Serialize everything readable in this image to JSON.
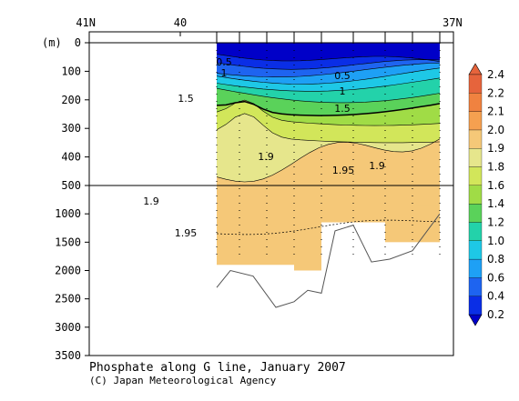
{
  "chart_data": {
    "type": "contour-section",
    "title": "Phosphate along G line, January 2007",
    "credit": "(C) Japan Meteorological Agency",
    "y_unit": "(m)",
    "x_ticks_top": [
      "41N",
      "40",
      "37N"
    ],
    "y_ticks": [
      "0",
      "100",
      "200",
      "300",
      "400",
      "500",
      "1000",
      "1500",
      "2000",
      "2500",
      "3000",
      "3500"
    ],
    "y_ticks_upper": [
      0,
      100,
      200,
      300,
      400,
      500
    ],
    "y_ticks_lower": [
      500,
      1000,
      1500,
      2000,
      2500,
      3000,
      3500
    ],
    "y_break_depth": 500,
    "y_upper_range": [
      0,
      500
    ],
    "y_lower_range": [
      500,
      3500
    ],
    "x_range_lat": [
      41,
      37
    ],
    "stations_lat": [
      39.6,
      39.35,
      39.05,
      38.75,
      38.45,
      38.1,
      37.75,
      37.45,
      37.15
    ],
    "colorbar": {
      "levels": [
        "0.2",
        "0.4",
        "0.6",
        "0.8",
        "1.0",
        "1.2",
        "1.4",
        "1.6",
        "1.8",
        "1.9",
        "2.0",
        "2.1",
        "2.2",
        "2.4"
      ],
      "colors": [
        "#0000c8",
        "#0a2ee6",
        "#1e64f0",
        "#1ea0f5",
        "#1ec8e6",
        "#23d2aa",
        "#5ad25a",
        "#a0dc46",
        "#d2e65a",
        "#e6e68c",
        "#f5c878",
        "#f5a050",
        "#f08240",
        "#e6643c"
      ]
    },
    "contour_labels": [
      "0.5",
      "1",
      "1.5",
      "1.9",
      "1.95"
    ],
    "bottom_depth_m": [
      2300,
      2000,
      2100,
      2650,
      2550,
      2350,
      2400,
      1300,
      1200,
      1850,
      1800,
      1650,
      1000
    ],
    "bottom_lat": [
      39.6,
      39.45,
      39.2,
      38.95,
      38.75,
      38.6,
      38.45,
      38.3,
      38.1,
      37.9,
      37.7,
      37.45,
      37.15
    ]
  }
}
